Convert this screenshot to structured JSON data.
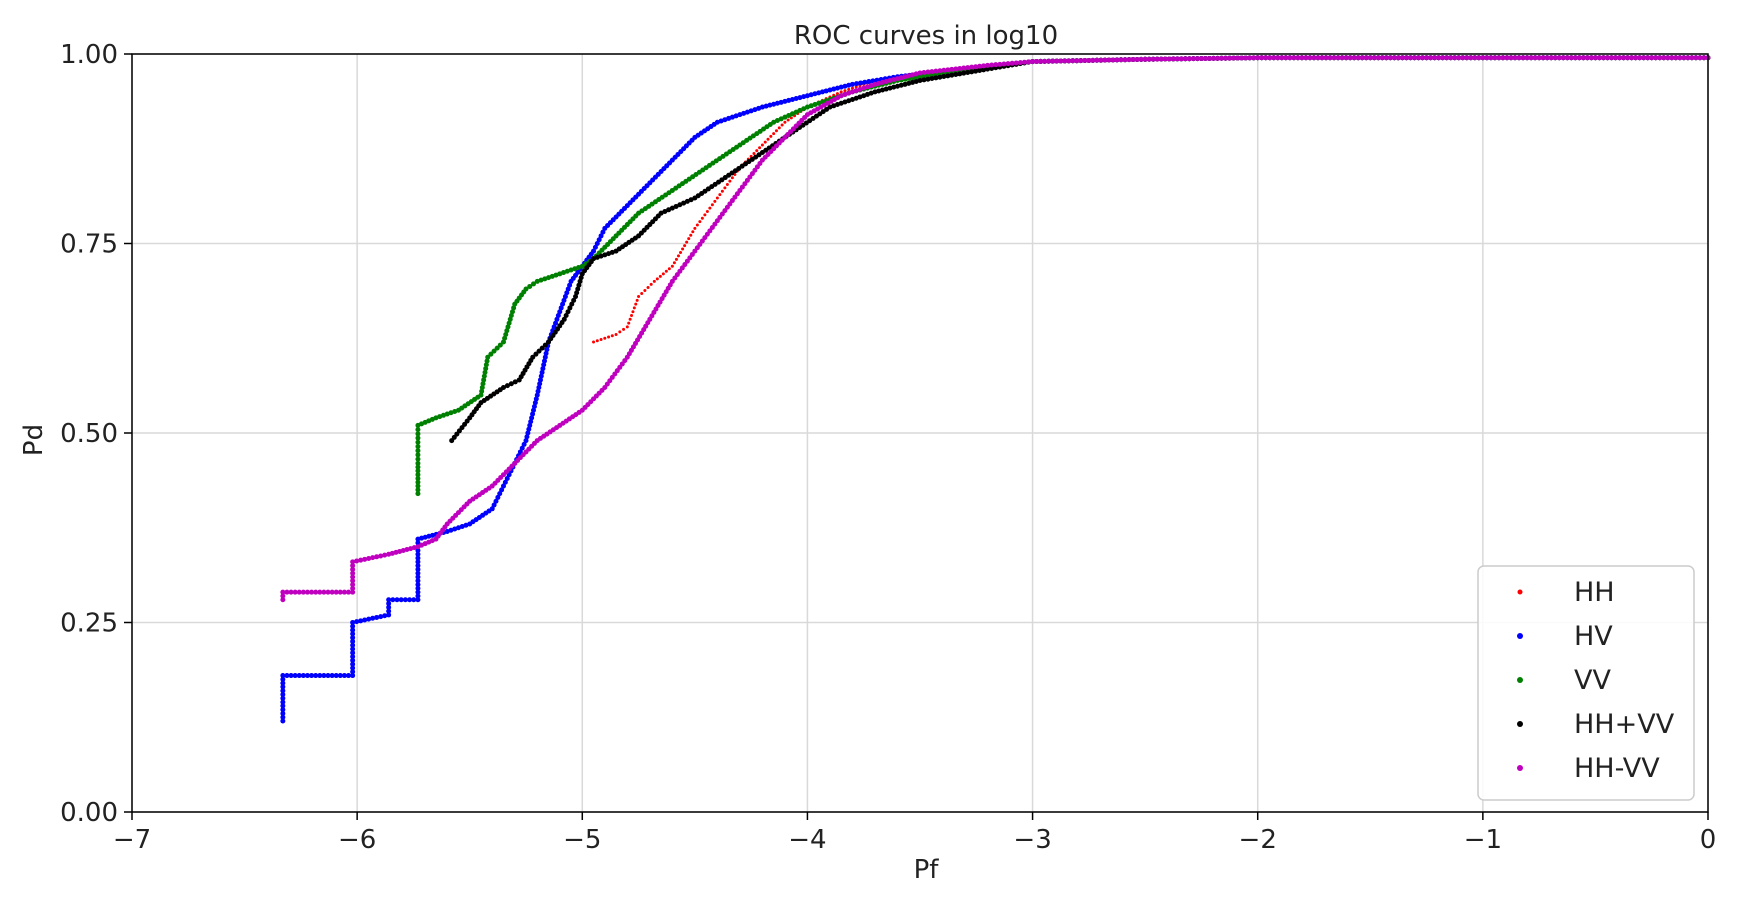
{
  "chart_data": {
    "type": "scatter",
    "title": "ROC curves in log10",
    "xlabel": "Pf",
    "ylabel": "Pd",
    "xlim": [
      -7,
      0
    ],
    "ylim": [
      0,
      1.0
    ],
    "xticks": [
      -7,
      -6,
      -5,
      -4,
      -3,
      -2,
      -1,
      0
    ],
    "xtick_labels": [
      "−7",
      "−6",
      "−5",
      "−4",
      "−3",
      "−2",
      "−1",
      "0"
    ],
    "yticks": [
      0,
      0.25,
      0.5,
      0.75,
      1.0
    ],
    "ytick_labels": [
      "0.00",
      "0.25",
      "0.50",
      "0.75",
      "1.00"
    ],
    "grid": true,
    "legend_position": "bottom-right",
    "series": [
      {
        "name": "HH",
        "color": "#ff0000",
        "marker_size": 1.5,
        "points": [
          [
            -4.95,
            0.62
          ],
          [
            -4.85,
            0.63
          ],
          [
            -4.8,
            0.64
          ],
          [
            -4.75,
            0.68
          ],
          [
            -4.68,
            0.7
          ],
          [
            -4.6,
            0.72
          ],
          [
            -4.5,
            0.77
          ],
          [
            -4.4,
            0.81
          ],
          [
            -4.3,
            0.85
          ],
          [
            -4.2,
            0.88
          ],
          [
            -4.1,
            0.91
          ],
          [
            -4.0,
            0.93
          ],
          [
            -3.85,
            0.95
          ],
          [
            -3.7,
            0.965
          ],
          [
            -3.5,
            0.975
          ],
          [
            -3.2,
            0.985
          ],
          [
            -3.0,
            0.99
          ],
          [
            -2.5,
            0.993
          ],
          [
            -2.0,
            0.995
          ],
          [
            -1.5,
            0.995
          ],
          [
            -1.0,
            0.995
          ],
          [
            -0.5,
            0.995
          ],
          [
            0.0,
            0.995
          ]
        ]
      },
      {
        "name": "HV",
        "color": "#0000ff",
        "marker_size": 2.5,
        "points": [
          [
            -6.33,
            0.12
          ],
          [
            -6.33,
            0.15
          ],
          [
            -6.33,
            0.18
          ],
          [
            -6.02,
            0.18
          ],
          [
            -6.02,
            0.22
          ],
          [
            -6.02,
            0.25
          ],
          [
            -5.86,
            0.26
          ],
          [
            -5.86,
            0.28
          ],
          [
            -5.73,
            0.28
          ],
          [
            -5.73,
            0.32
          ],
          [
            -5.73,
            0.36
          ],
          [
            -5.6,
            0.37
          ],
          [
            -5.5,
            0.38
          ],
          [
            -5.4,
            0.4
          ],
          [
            -5.35,
            0.43
          ],
          [
            -5.3,
            0.46
          ],
          [
            -5.25,
            0.49
          ],
          [
            -5.2,
            0.55
          ],
          [
            -5.15,
            0.62
          ],
          [
            -5.1,
            0.66
          ],
          [
            -5.05,
            0.7
          ],
          [
            -5.0,
            0.72
          ],
          [
            -4.95,
            0.74
          ],
          [
            -4.9,
            0.77
          ],
          [
            -4.8,
            0.8
          ],
          [
            -4.7,
            0.83
          ],
          [
            -4.6,
            0.86
          ],
          [
            -4.5,
            0.89
          ],
          [
            -4.4,
            0.91
          ],
          [
            -4.2,
            0.93
          ],
          [
            -4.0,
            0.945
          ],
          [
            -3.8,
            0.96
          ],
          [
            -3.6,
            0.97
          ],
          [
            -3.3,
            0.98
          ],
          [
            -3.0,
            0.99
          ],
          [
            -2.5,
            0.993
          ],
          [
            -2.0,
            0.995
          ],
          [
            -1.5,
            0.995
          ],
          [
            -1.0,
            0.995
          ],
          [
            -0.5,
            0.995
          ],
          [
            0.0,
            0.995
          ]
        ]
      },
      {
        "name": "VV",
        "color": "#008000",
        "marker_size": 2.5,
        "points": [
          [
            -5.73,
            0.42
          ],
          [
            -5.73,
            0.46
          ],
          [
            -5.73,
            0.51
          ],
          [
            -5.65,
            0.52
          ],
          [
            -5.55,
            0.53
          ],
          [
            -5.45,
            0.55
          ],
          [
            -5.42,
            0.6
          ],
          [
            -5.35,
            0.62
          ],
          [
            -5.3,
            0.67
          ],
          [
            -5.25,
            0.69
          ],
          [
            -5.2,
            0.7
          ],
          [
            -5.1,
            0.71
          ],
          [
            -5.0,
            0.72
          ],
          [
            -4.95,
            0.73
          ],
          [
            -4.85,
            0.76
          ],
          [
            -4.75,
            0.79
          ],
          [
            -4.6,
            0.82
          ],
          [
            -4.45,
            0.85
          ],
          [
            -4.3,
            0.88
          ],
          [
            -4.15,
            0.91
          ],
          [
            -4.0,
            0.93
          ],
          [
            -3.8,
            0.95
          ],
          [
            -3.6,
            0.965
          ],
          [
            -3.3,
            0.98
          ],
          [
            -3.0,
            0.99
          ],
          [
            -2.5,
            0.993
          ],
          [
            -2.0,
            0.995
          ],
          [
            -1.5,
            0.995
          ],
          [
            -1.0,
            0.995
          ],
          [
            -0.5,
            0.995
          ],
          [
            0.0,
            0.995
          ]
        ]
      },
      {
        "name": "HH+VV",
        "color": "#000000",
        "marker_size": 2.5,
        "points": [
          [
            -5.58,
            0.49
          ],
          [
            -5.5,
            0.52
          ],
          [
            -5.45,
            0.54
          ],
          [
            -5.35,
            0.56
          ],
          [
            -5.28,
            0.57
          ],
          [
            -5.22,
            0.6
          ],
          [
            -5.15,
            0.62
          ],
          [
            -5.08,
            0.65
          ],
          [
            -5.03,
            0.68
          ],
          [
            -5.0,
            0.71
          ],
          [
            -4.95,
            0.73
          ],
          [
            -4.85,
            0.74
          ],
          [
            -4.75,
            0.76
          ],
          [
            -4.65,
            0.79
          ],
          [
            -4.5,
            0.81
          ],
          [
            -4.35,
            0.84
          ],
          [
            -4.2,
            0.87
          ],
          [
            -4.05,
            0.9
          ],
          [
            -3.9,
            0.93
          ],
          [
            -3.7,
            0.95
          ],
          [
            -3.5,
            0.965
          ],
          [
            -3.2,
            0.98
          ],
          [
            -3.0,
            0.99
          ],
          [
            -2.5,
            0.993
          ],
          [
            -2.0,
            0.995
          ],
          [
            -1.5,
            0.995
          ],
          [
            -1.0,
            0.995
          ],
          [
            -0.5,
            0.995
          ],
          [
            0.0,
            0.995
          ]
        ]
      },
      {
        "name": "HH-VV",
        "color": "#bf00bf",
        "marker_size": 2.5,
        "points": [
          [
            -6.33,
            0.28
          ],
          [
            -6.33,
            0.29
          ],
          [
            -6.02,
            0.29
          ],
          [
            -6.02,
            0.31
          ],
          [
            -6.02,
            0.33
          ],
          [
            -5.86,
            0.34
          ],
          [
            -5.73,
            0.35
          ],
          [
            -5.65,
            0.36
          ],
          [
            -5.6,
            0.38
          ],
          [
            -5.5,
            0.41
          ],
          [
            -5.4,
            0.43
          ],
          [
            -5.3,
            0.46
          ],
          [
            -5.2,
            0.49
          ],
          [
            -5.1,
            0.51
          ],
          [
            -5.0,
            0.53
          ],
          [
            -4.9,
            0.56
          ],
          [
            -4.8,
            0.6
          ],
          [
            -4.7,
            0.65
          ],
          [
            -4.6,
            0.7
          ],
          [
            -4.5,
            0.74
          ],
          [
            -4.4,
            0.78
          ],
          [
            -4.3,
            0.82
          ],
          [
            -4.2,
            0.86
          ],
          [
            -4.1,
            0.89
          ],
          [
            -4.0,
            0.92
          ],
          [
            -3.85,
            0.945
          ],
          [
            -3.7,
            0.96
          ],
          [
            -3.5,
            0.975
          ],
          [
            -3.2,
            0.985
          ],
          [
            -3.0,
            0.99
          ],
          [
            -2.5,
            0.993
          ],
          [
            -2.0,
            0.995
          ],
          [
            -1.5,
            0.995
          ],
          [
            -1.0,
            0.995
          ],
          [
            -0.5,
            0.995
          ],
          [
            0.0,
            0.995
          ]
        ]
      }
    ]
  }
}
